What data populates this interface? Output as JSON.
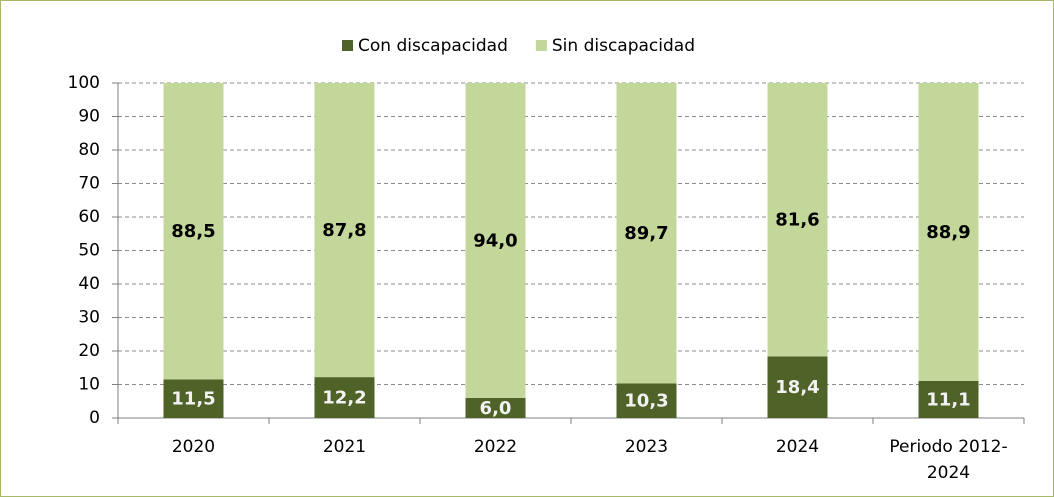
{
  "chart_data": {
    "type": "stacked_bar",
    "categories": [
      "2020",
      "2021",
      "2022",
      "2023",
      "2024",
      "Periodo 2012-2024"
    ],
    "series": [
      {
        "name": "Con discapacidad",
        "color": "#4f6228",
        "values": [
          11.5,
          12.2,
          6.0,
          10.3,
          18.4,
          11.1
        ],
        "value_labels": [
          "11,5",
          "12,2",
          "6,0",
          "10,3",
          "18,4",
          "11,1"
        ]
      },
      {
        "name": "Sin discapacidad",
        "color": "#c4d79b",
        "values": [
          88.5,
          87.8,
          94.0,
          89.7,
          81.6,
          88.9
        ],
        "value_labels": [
          "88,5",
          "87,8",
          "94,0",
          "89,7",
          "81,6",
          "88,9"
        ]
      }
    ],
    "ylim": [
      0,
      100
    ],
    "yticks": [
      0,
      10,
      20,
      30,
      40,
      50,
      60,
      70,
      80,
      90,
      100
    ],
    "grid": true,
    "legend": "top"
  }
}
